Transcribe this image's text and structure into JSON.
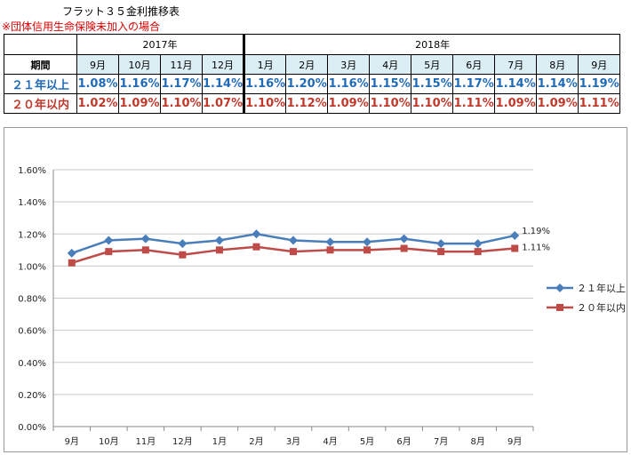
{
  "header": {
    "title": "フラット３５金利推移表",
    "note": "※団体信用生命保険未加入の場合"
  },
  "table": {
    "period_label": "期間",
    "year_2017": "2017年",
    "year_2018": "2018年",
    "months_2017": [
      "9月",
      "10月",
      "11月",
      "12月"
    ],
    "months_2018": [
      "1月",
      "2月",
      "3月",
      "4月",
      "5月",
      "6月",
      "7月",
      "8月",
      "9月"
    ],
    "rows": [
      {
        "label": "２１年以上",
        "values": [
          "1.08%",
          "1.16%",
          "1.17%",
          "1.14%",
          "1.16%",
          "1.20%",
          "1.16%",
          "1.15%",
          "1.15%",
          "1.17%",
          "1.14%",
          "1.14%",
          "1.19%"
        ]
      },
      {
        "label": "２０年以内",
        "values": [
          "1.02%",
          "1.09%",
          "1.10%",
          "1.07%",
          "1.10%",
          "1.12%",
          "1.09%",
          "1.10%",
          "1.10%",
          "1.11%",
          "1.09%",
          "1.09%",
          "1.11%"
        ]
      }
    ]
  },
  "chart_data": {
    "type": "line",
    "categories": [
      "9月",
      "10月",
      "11月",
      "12月",
      "1月",
      "2月",
      "3月",
      "4月",
      "5月",
      "6月",
      "7月",
      "8月",
      "9月"
    ],
    "series": [
      {
        "name": "２１年以上",
        "values": [
          1.08,
          1.16,
          1.17,
          1.14,
          1.16,
          1.2,
          1.16,
          1.15,
          1.15,
          1.17,
          1.14,
          1.14,
          1.19
        ],
        "color": "#4a7ebb",
        "marker": "diamond",
        "end_label": "1.19%"
      },
      {
        "name": "２０年以内",
        "values": [
          1.02,
          1.09,
          1.1,
          1.07,
          1.1,
          1.12,
          1.09,
          1.1,
          1.1,
          1.11,
          1.09,
          1.09,
          1.11
        ],
        "color": "#be4b48",
        "marker": "square",
        "end_label": "1.11%"
      }
    ],
    "ylim": [
      0,
      1.6
    ],
    "yticks": [
      "0.00%",
      "0.20%",
      "0.40%",
      "0.60%",
      "0.80%",
      "1.00%",
      "1.20%",
      "1.40%",
      "1.60%"
    ],
    "grid": true,
    "legend_position": "right"
  }
}
